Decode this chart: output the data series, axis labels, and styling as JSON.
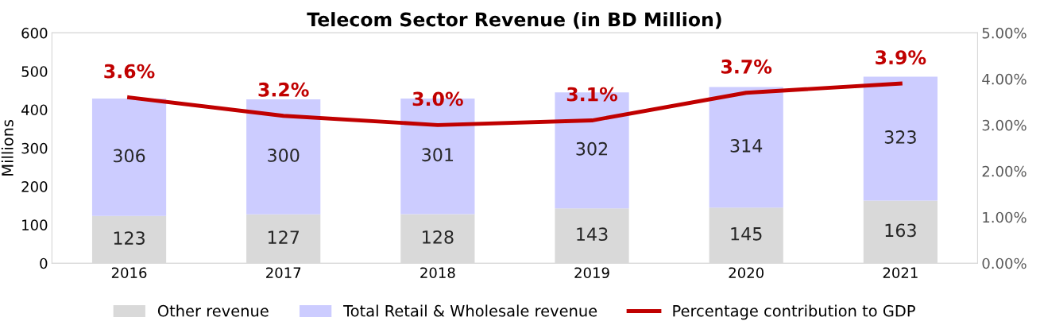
{
  "chart_data": {
    "type": "bar",
    "title": "Telecom Sector Revenue (in BD Million)",
    "ylabel": "Millions",
    "categories": [
      "2016",
      "2017",
      "2018",
      "2019",
      "2020",
      "2021"
    ],
    "stacked": true,
    "data_labels": true,
    "legend": "bottom",
    "grid": false,
    "ylim": [
      0,
      600
    ],
    "yticks": [
      0,
      100,
      200,
      300,
      400,
      500,
      600
    ],
    "y2lim": [
      0,
      5
    ],
    "y2ticks": [
      {
        "value": 0,
        "label": "0.00%"
      },
      {
        "value": 1,
        "label": "1.00%"
      },
      {
        "value": 2,
        "label": "2.00%"
      },
      {
        "value": 3,
        "label": "3.00%"
      },
      {
        "value": 4,
        "label": "4.00%"
      },
      {
        "value": 5,
        "label": "5.00%"
      }
    ],
    "series": [
      {
        "name": "Other revenue",
        "color": "#d9d9d9",
        "values": [
          123,
          127,
          128,
          143,
          145,
          163
        ]
      },
      {
        "name": "Total Retail & Wholesale revenue",
        "color": "#ccccff",
        "values": [
          306,
          300,
          301,
          302,
          314,
          323
        ]
      },
      {
        "name": "Percentage contribution to GDP",
        "type": "line",
        "axis": "y2",
        "color": "#c00000",
        "values": [
          3.6,
          3.2,
          3.0,
          3.1,
          3.7,
          3.9
        ],
        "value_labels": [
          "3.6%",
          "3.2%",
          "3.0%",
          "3.1%",
          "3.7%",
          "3.9%"
        ]
      }
    ]
  }
}
